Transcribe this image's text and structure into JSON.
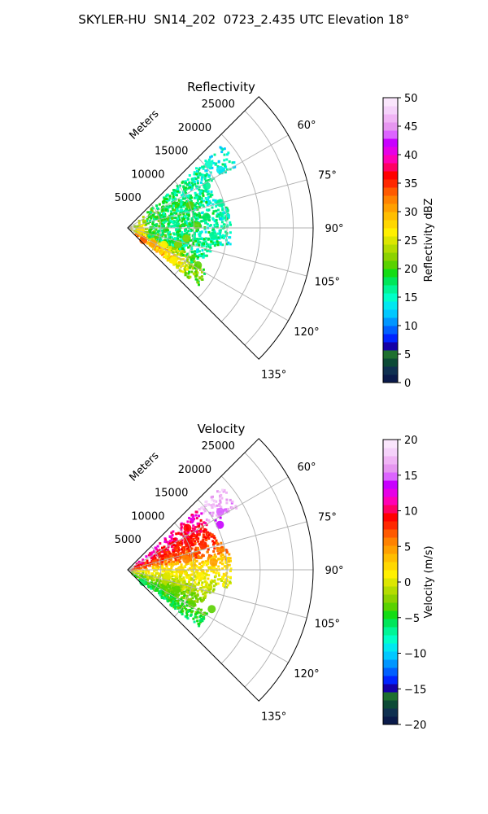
{
  "figure": {
    "title": "SKYLER-HU  SN14_202  0723_2.435 UTC Elevation 18°"
  },
  "chart_data": [
    {
      "type": "heatmap",
      "projection": "polar-sector",
      "title": "Reflectivity",
      "radial_axis_label": "Meters",
      "radial_ticks": [
        5000,
        10000,
        15000,
        20000,
        25000
      ],
      "radial_tick_labels": [
        "5000",
        "10000",
        "15000",
        "20000",
        "25000"
      ],
      "radial_range": [
        0,
        28000
      ],
      "angular_range_deg": [
        45,
        135
      ],
      "angular_ticks": [
        60,
        75,
        90,
        105,
        120,
        135
      ],
      "angular_tick_labels": [
        "60°",
        "75°",
        "90°",
        "105°",
        "120°",
        "135°"
      ],
      "grid": true,
      "colorbar": {
        "label": "Reflectivity dBZ",
        "range": [
          0,
          50
        ],
        "ticks": [
          0,
          5,
          10,
          15,
          20,
          25,
          30,
          35,
          40,
          45,
          50
        ],
        "tick_labels": [
          "0",
          "5",
          "10",
          "15",
          "20",
          "25",
          "30",
          "35",
          "40",
          "45",
          "50"
        ],
        "palette": [
          "#0a1a4a",
          "#0f3050",
          "#0c4a36",
          "#1e6f2f",
          "#1500a6",
          "#0024ff",
          "#0060ff",
          "#0096ff",
          "#00c8ff",
          "#00e8f0",
          "#00ffc8",
          "#00f596",
          "#00e65a",
          "#14dc14",
          "#5ad200",
          "#8cd200",
          "#b4dc00",
          "#dce600",
          "#fff000",
          "#ffd700",
          "#ffbe00",
          "#ffa000",
          "#ff8200",
          "#ff5a00",
          "#ff2800",
          "#ff0000",
          "#ff0064",
          "#ff00b4",
          "#e600e6",
          "#c800ff",
          "#dc64ff",
          "#e696f0",
          "#f0b4f5",
          "#f5d2fa",
          "#fae6fc"
        ]
      },
      "data_notes": "Echo fills roughly 48°–128° out to ~19000 m. Values mostly 15–30 dBZ; ~20 dBZ (green) near the radar; 25–35 dBZ (yellow/orange) along the lower-left band at 115°–130°; 12–18 dBZ (cyan) in scattered cells at 15000–19000 m.",
      "cells": [
        {
          "az": 52,
          "r": 15500,
          "dbz": 15
        },
        {
          "az": 58,
          "r": 16500,
          "dbz": 14
        },
        {
          "az": 62,
          "r": 13500,
          "dbz": 16
        },
        {
          "az": 70,
          "r": 10000,
          "dbz": 20
        },
        {
          "az": 75,
          "r": 14500,
          "dbz": 16
        },
        {
          "az": 82,
          "r": 12000,
          "dbz": 18
        },
        {
          "az": 88,
          "r": 10500,
          "dbz": 20
        },
        {
          "az": 95,
          "r": 13000,
          "dbz": 16
        },
        {
          "az": 100,
          "r": 9000,
          "dbz": 22
        },
        {
          "az": 108,
          "r": 8000,
          "dbz": 22
        },
        {
          "az": 115,
          "r": 6000,
          "dbz": 26
        },
        {
          "az": 118,
          "r": 12000,
          "dbz": 20
        },
        {
          "az": 122,
          "r": 4500,
          "dbz": 30
        },
        {
          "az": 125,
          "r": 8500,
          "dbz": 27
        },
        {
          "az": 128,
          "r": 3000,
          "dbz": 33
        },
        {
          "az": 100,
          "r": 2000,
          "dbz": 28
        }
      ]
    },
    {
      "type": "heatmap",
      "projection": "polar-sector",
      "title": "Velocity",
      "radial_axis_label": "Meters",
      "radial_ticks": [
        5000,
        10000,
        15000,
        20000,
        25000
      ],
      "radial_tick_labels": [
        "5000",
        "10000",
        "15000",
        "20000",
        "25000"
      ],
      "radial_range": [
        0,
        28000
      ],
      "angular_range_deg": [
        45,
        135
      ],
      "angular_ticks": [
        60,
        75,
        90,
        105,
        120,
        135
      ],
      "angular_tick_labels": [
        "60°",
        "75°",
        "90°",
        "105°",
        "120°",
        "135°"
      ],
      "grid": true,
      "colorbar": {
        "label": "Velocity (m/s)",
        "range": [
          -20,
          20
        ],
        "ticks": [
          -20,
          -15,
          -10,
          -5,
          0,
          5,
          10,
          15,
          20
        ],
        "tick_labels": [
          "−20",
          "−15",
          "−10",
          "−5",
          "0",
          "5",
          "10",
          "15",
          "20"
        ],
        "palette": [
          "#0a1a4a",
          "#0f3050",
          "#0c4a36",
          "#1e6f2f",
          "#1500a6",
          "#0024ff",
          "#0060ff",
          "#0096ff",
          "#00c8ff",
          "#00e8f0",
          "#00ffc8",
          "#00f596",
          "#00e65a",
          "#14dc14",
          "#5ad200",
          "#8cd200",
          "#b4dc00",
          "#dce600",
          "#fff000",
          "#ffd700",
          "#ffbe00",
          "#ffa000",
          "#ff8200",
          "#ff5a00",
          "#ff2800",
          "#ff0000",
          "#ff0064",
          "#ff00b4",
          "#e600e6",
          "#c800ff",
          "#dc64ff",
          "#e696f0",
          "#f0b4f5",
          "#f5d2fa",
          "#fae6fc"
        ]
      },
      "data_notes": "Positive (orange/red, 5–10 m/s) at azimuths 55°–85°; magenta (14–17 m/s) near 60°–70° at 15000–19000 m; near zero (yellow) around 85°–105°; negative (green, −3 to −6 m/s) at 110°–130°.",
      "cells": [
        {
          "az": 58,
          "r": 16500,
          "ms": 15
        },
        {
          "az": 64,
          "r": 15500,
          "ms": 14
        },
        {
          "az": 55,
          "r": 11000,
          "ms": 9
        },
        {
          "az": 65,
          "r": 10000,
          "ms": 9
        },
        {
          "az": 72,
          "r": 12000,
          "ms": 8
        },
        {
          "az": 80,
          "r": 9000,
          "ms": 6
        },
        {
          "az": 85,
          "r": 13000,
          "ms": 5
        },
        {
          "az": 90,
          "r": 8000,
          "ms": 2
        },
        {
          "az": 95,
          "r": 11000,
          "ms": 1
        },
        {
          "az": 100,
          "r": 6000,
          "ms": 0
        },
        {
          "az": 105,
          "r": 10000,
          "ms": -1
        },
        {
          "az": 112,
          "r": 8000,
          "ms": -3
        },
        {
          "az": 118,
          "r": 11000,
          "ms": -4
        },
        {
          "az": 122,
          "r": 5000,
          "ms": -5
        },
        {
          "az": 128,
          "r": 3000,
          "ms": -6
        },
        {
          "az": 115,
          "r": 14000,
          "ms": -4
        }
      ]
    }
  ]
}
